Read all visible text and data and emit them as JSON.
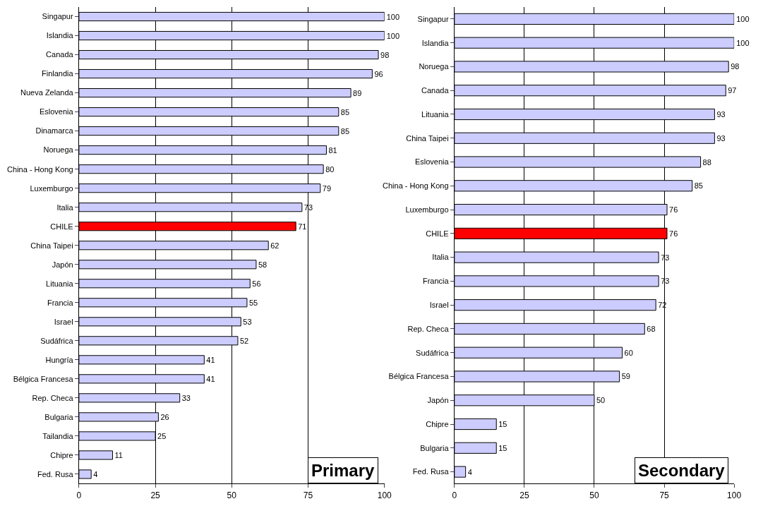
{
  "chart_data": [
    {
      "type": "bar",
      "orientation": "horizontal",
      "categories": [
        "Singapur",
        "Islandia",
        "Canada",
        "Finlandia",
        "Nueva Zelanda",
        "Eslovenia",
        "Dinamarca",
        "Noruega",
        "China - Hong Kong",
        "Luxemburgo",
        "Italia",
        "CHILE",
        "China Taipei",
        "Japón",
        "Lituania",
        "Francia",
        "Israel",
        "Sudáfrica",
        "Hungría",
        "Bélgica Francesa",
        "Rep. Checa",
        "Bulgaria",
        "Tailandia",
        "Chipre",
        "Fed. Rusa"
      ],
      "values": [
        100,
        100,
        98,
        96,
        89,
        85,
        85,
        81,
        80,
        79,
        73,
        71,
        62,
        58,
        56,
        55,
        53,
        52,
        41,
        41,
        33,
        26,
        25,
        11,
        4
      ],
      "colors": [
        "#ccccff",
        "#ccccff",
        "#ccccff",
        "#ccccff",
        "#ccccff",
        "#ccccff",
        "#ccccff",
        "#ccccff",
        "#ccccff",
        "#ccccff",
        "#ccccff",
        "#ff0000",
        "#ccccff",
        "#ccccff",
        "#ccccff",
        "#ccccff",
        "#ccccff",
        "#ccccff",
        "#ccccff",
        "#ccccff",
        "#ccccff",
        "#ccccff",
        "#ccccff",
        "#ccccff",
        "#ccccff"
      ],
      "xlim": [
        0,
        100
      ],
      "xticks": [
        0,
        25,
        50,
        75,
        100
      ],
      "grid": "x",
      "data_labels": true,
      "annotations": [
        "Primary"
      ]
    },
    {
      "type": "bar",
      "orientation": "horizontal",
      "categories": [
        "Singapur",
        "Islandia",
        "Noruega",
        "Canada",
        "Lituania",
        "China Taipei",
        "Eslovenia",
        "China - Hong Kong",
        "Luxemburgo",
        "CHILE",
        "Italia",
        "Francia",
        "Israel",
        "Rep. Checa",
        "Sudáfrica",
        "Bélgica Francesa",
        "Japón",
        "Chipre",
        "Bulgaria",
        "Fed. Rusa"
      ],
      "values": [
        100,
        100,
        98,
        97,
        93,
        93,
        88,
        85,
        76,
        76,
        73,
        73,
        72,
        68,
        60,
        59,
        50,
        15,
        15,
        4
      ],
      "colors": [
        "#ccccff",
        "#ccccff",
        "#ccccff",
        "#ccccff",
        "#ccccff",
        "#ccccff",
        "#ccccff",
        "#ccccff",
        "#ccccff",
        "#ff0000",
        "#ccccff",
        "#ccccff",
        "#ccccff",
        "#ccccff",
        "#ccccff",
        "#ccccff",
        "#ccccff",
        "#ccccff",
        "#ccccff",
        "#ccccff"
      ],
      "xlim": [
        0,
        100
      ],
      "xticks": [
        0,
        25,
        50,
        75,
        100
      ],
      "grid": "x",
      "data_labels": true,
      "annotations": [
        "Secondary"
      ]
    }
  ]
}
